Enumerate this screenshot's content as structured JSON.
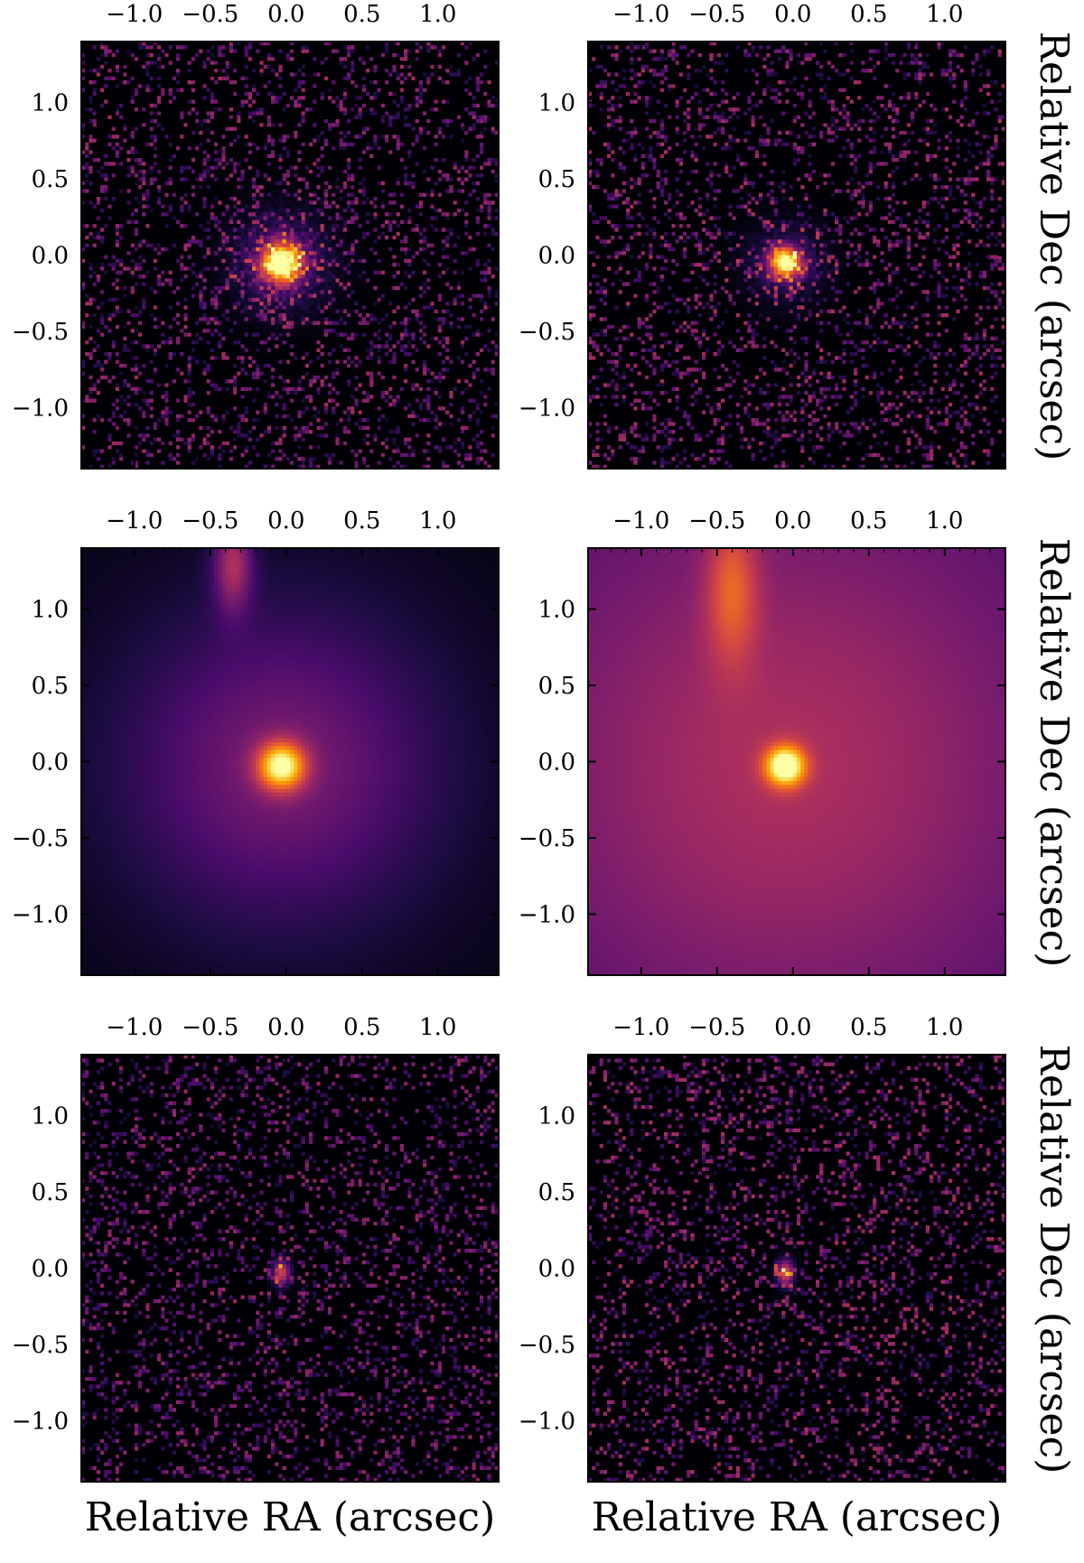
{
  "chart_data": {
    "type": "heatmap",
    "colormap": "inferno",
    "colormap_stops": [
      "#000004",
      "#1b0c41",
      "#4a0c6b",
      "#781c6d",
      "#a52c60",
      "#cf4446",
      "#ed6925",
      "#fb9b06",
      "#f7d13d",
      "#fcffa4"
    ],
    "rows": [
      {
        "id": "data",
        "right_ylabel": "Relative Dec (arcsec)"
      },
      {
        "id": "model",
        "right_ylabel": "Relative Dec (arcsec)"
      },
      {
        "id": "residual",
        "right_ylabel": "Relative Dec (arcsec)"
      }
    ],
    "columns": [
      {
        "id": "left",
        "xlabel": "Relative RA (arcsec)"
      },
      {
        "id": "right",
        "xlabel": "Relative RA (arcsec)"
      }
    ],
    "x_ticks": [
      -1.0,
      -0.5,
      0.0,
      0.5,
      1.0
    ],
    "x_tick_labels": [
      "−1.0",
      "−0.5",
      "0.0",
      "0.5",
      "1.0"
    ],
    "y_ticks": [
      1.0,
      0.5,
      0.0,
      -0.5,
      -1.0
    ],
    "y_tick_labels": [
      "1.0",
      "0.5",
      "0.0",
      "−0.5",
      "−1.0"
    ],
    "xlim": [
      -1.35,
      1.4
    ],
    "ylim": [
      -1.4,
      1.4
    ],
    "grid": false,
    "panels": [
      {
        "row": "data",
        "col": "left",
        "kind": "noise_source",
        "source": {
          "x": -0.03,
          "y": -0.05,
          "sigma": 0.09,
          "peak": 1.0,
          "halo_sigma": 0.22,
          "halo_amp": 0.3
        },
        "background_level": 0.0,
        "noise_amp": 0.32,
        "seed": 11
      },
      {
        "row": "data",
        "col": "right",
        "kind": "noise_source",
        "source": {
          "x": -0.05,
          "y": -0.05,
          "sigma": 0.07,
          "peak": 0.95,
          "halo_sigma": 0.18,
          "halo_amp": 0.22
        },
        "background_level": 0.0,
        "noise_amp": 0.34,
        "seed": 23
      },
      {
        "row": "model",
        "col": "left",
        "kind": "model",
        "source": {
          "x": -0.03,
          "y": -0.03,
          "sigma": 0.11,
          "peak": 1.0
        },
        "envelope": {
          "sigma": 0.75,
          "amp": 0.3
        },
        "arc": {
          "x": -0.35,
          "y": 1.3,
          "sx": 0.09,
          "sy": 0.22,
          "amp": 0.38
        },
        "background_level": 0.03
      },
      {
        "row": "model",
        "col": "right",
        "kind": "model",
        "source": {
          "x": -0.05,
          "y": -0.03,
          "sigma": 0.09,
          "peak": 1.0
        },
        "envelope": {
          "sigma": 1.2,
          "amp": 0.24
        },
        "arc": {
          "x": -0.4,
          "y": 1.15,
          "sx": 0.12,
          "sy": 0.35,
          "amp": 0.3
        },
        "background_level": 0.22
      },
      {
        "row": "residual",
        "col": "left",
        "kind": "residual",
        "source": {
          "x": -0.03,
          "y": -0.03,
          "sigma": 0.04,
          "peak": 0.55
        },
        "background_level": 0.0,
        "noise_amp": 0.3,
        "seed": 37
      },
      {
        "row": "residual",
        "col": "right",
        "kind": "residual",
        "source": {
          "x": -0.05,
          "y": -0.03,
          "sigma": 0.04,
          "peak": 0.6
        },
        "background_level": 0.0,
        "noise_amp": 0.34,
        "seed": 49
      }
    ]
  }
}
